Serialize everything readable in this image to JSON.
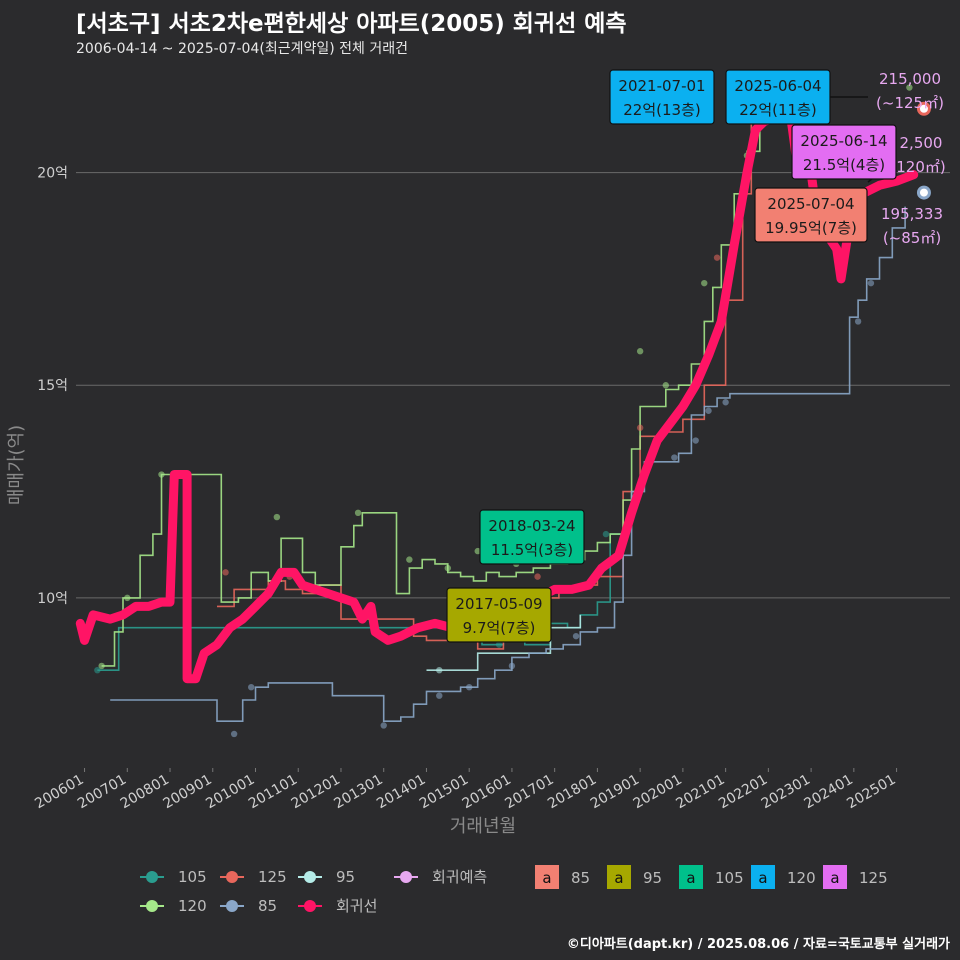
{
  "header": {
    "title": "[서초구] 서초2차e편한세상 아파트(2005) 회귀선 예측",
    "subtitle": "2006-04-14 ~ 2025-07-04(최근계약일) 전체 거래건"
  },
  "footer": {
    "credit": "©디아파트(dapt.kr) / 2025.08.06 / 자료=국토교통부 실거래가"
  },
  "colors": {
    "background": "#2b2b2d",
    "s105": "#2a9d8f",
    "s125": "#e8675c",
    "s95": "#b5ece8",
    "s120": "#a6e88a",
    "s85": "#8aa7c9",
    "regression": "#ff1465",
    "forecast": "#e7a8f0",
    "box85": "#f28072",
    "box95": "#a6a800",
    "box105": "#00c08b",
    "box120": "#0bb0f0",
    "box125": "#e36df2"
  },
  "chart_data": {
    "type": "line",
    "xlabel": "거래년월",
    "ylabel": "매매가(억)",
    "x_ticks": [
      "200601",
      "200701",
      "200801",
      "200901",
      "201001",
      "201101",
      "201201",
      "201301",
      "201401",
      "201501",
      "201601",
      "201701",
      "201801",
      "201901",
      "202001",
      "202101",
      "202201",
      "202301",
      "202401",
      "202501"
    ],
    "y_ticks": [
      {
        "value": 10,
        "label": "10억"
      },
      {
        "value": 15,
        "label": "15억"
      },
      {
        "value": 20,
        "label": "20억"
      }
    ],
    "ylim": [
      6.0,
      22.6
    ],
    "xlim": [
      2005.8,
      2026.25
    ],
    "series": [
      {
        "name": "105",
        "color_key": "s105",
        "points": [
          [
            2006.3,
            8.3
          ],
          [
            2006.8,
            9.3
          ],
          [
            2007.3,
            9.3
          ],
          [
            2015.3,
            8.9
          ],
          [
            2015.8,
            9.0
          ],
          [
            2016.3,
            8.9
          ],
          [
            2016.9,
            9.4
          ],
          [
            2017.3,
            9.3
          ],
          [
            2017.6,
            9.6
          ],
          [
            2018.0,
            9.9
          ],
          [
            2018.3,
            11.5
          ],
          [
            2018.6,
            11.5
          ]
        ]
      },
      {
        "name": "125",
        "color_key": "s125",
        "points": [
          [
            2009.1,
            9.8
          ],
          [
            2009.5,
            10.2
          ],
          [
            2009.9,
            10.2
          ],
          [
            2010.3,
            10.4
          ],
          [
            2010.7,
            10.2
          ],
          [
            2011.1,
            10.1
          ],
          [
            2011.5,
            10.3
          ],
          [
            2012.0,
            9.5
          ],
          [
            2012.4,
            9.5
          ],
          [
            2013.7,
            9.1
          ],
          [
            2014.0,
            9.0
          ],
          [
            2014.5,
            9.2
          ],
          [
            2015.2,
            8.8
          ],
          [
            2015.8,
            9.0
          ],
          [
            2016.4,
            9.6
          ],
          [
            2016.8,
            10.0
          ],
          [
            2017.1,
            10.2
          ],
          [
            2017.5,
            10.3
          ],
          [
            2018.0,
            10.5
          ],
          [
            2018.6,
            12.5
          ],
          [
            2019.0,
            13.8
          ],
          [
            2019.5,
            13.9
          ],
          [
            2020.0,
            14.2
          ],
          [
            2020.5,
            15.0
          ],
          [
            2021.0,
            17.0
          ],
          [
            2021.4,
            19.5
          ],
          [
            2021.6,
            21.5
          ],
          [
            2022.0,
            22.0
          ]
        ]
      },
      {
        "name": "95",
        "color_key": "s95",
        "points": [
          [
            2014.0,
            8.3
          ],
          [
            2014.4,
            8.3
          ],
          [
            2015.2,
            8.7
          ],
          [
            2015.7,
            8.7
          ],
          [
            2016.9,
            9.3
          ],
          [
            2017.6,
            9.6
          ]
        ]
      },
      {
        "name": "120",
        "color_key": "s120",
        "points": [
          [
            2006.4,
            8.4
          ],
          [
            2006.7,
            9.2
          ],
          [
            2006.9,
            10.0
          ],
          [
            2007.1,
            10.0
          ],
          [
            2007.3,
            11.0
          ],
          [
            2007.6,
            11.5
          ],
          [
            2007.8,
            12.9
          ],
          [
            2008.1,
            12.9
          ],
          [
            2009.2,
            9.9
          ],
          [
            2009.6,
            10.0
          ],
          [
            2009.9,
            10.6
          ],
          [
            2010.3,
            10.4
          ],
          [
            2010.6,
            11.4
          ],
          [
            2010.9,
            11.4
          ],
          [
            2011.1,
            10.6
          ],
          [
            2011.4,
            10.3
          ],
          [
            2011.7,
            10.3
          ],
          [
            2012.0,
            11.2
          ],
          [
            2012.3,
            11.7
          ],
          [
            2012.5,
            12.0
          ],
          [
            2012.8,
            12.0
          ],
          [
            2013.3,
            10.1
          ],
          [
            2013.6,
            10.7
          ],
          [
            2013.9,
            10.9
          ],
          [
            2014.2,
            10.8
          ],
          [
            2014.5,
            10.6
          ],
          [
            2014.8,
            10.5
          ],
          [
            2015.1,
            10.4
          ],
          [
            2015.4,
            10.6
          ],
          [
            2015.7,
            10.5
          ],
          [
            2016.1,
            10.6
          ],
          [
            2016.5,
            10.7
          ],
          [
            2016.9,
            10.8
          ],
          [
            2017.3,
            10.9
          ],
          [
            2017.7,
            11.1
          ],
          [
            2018.0,
            11.3
          ],
          [
            2018.3,
            11.5
          ],
          [
            2018.6,
            12.3
          ],
          [
            2018.8,
            13.5
          ],
          [
            2019.0,
            14.5
          ],
          [
            2019.3,
            14.5
          ],
          [
            2019.6,
            14.9
          ],
          [
            2019.9,
            15.0
          ],
          [
            2020.2,
            15.5
          ],
          [
            2020.5,
            16.5
          ],
          [
            2020.7,
            17.3
          ],
          [
            2020.9,
            18.3
          ],
          [
            2021.2,
            19.5
          ],
          [
            2021.5,
            20.5
          ],
          [
            2021.8,
            22.0
          ],
          [
            2022.1,
            22.0
          ]
        ]
      },
      {
        "name": "85",
        "color_key": "s85",
        "points": [
          [
            2006.6,
            7.6
          ],
          [
            2007.3,
            7.6
          ],
          [
            2009.1,
            7.1
          ],
          [
            2009.4,
            7.1
          ],
          [
            2009.7,
            7.6
          ],
          [
            2010.0,
            7.9
          ],
          [
            2010.3,
            8.0
          ],
          [
            2011.8,
            7.7
          ],
          [
            2012.3,
            7.7
          ],
          [
            2013.0,
            7.1
          ],
          [
            2013.4,
            7.2
          ],
          [
            2013.7,
            7.5
          ],
          [
            2014.0,
            7.8
          ],
          [
            2014.4,
            7.8
          ],
          [
            2014.8,
            7.9
          ],
          [
            2015.2,
            8.1
          ],
          [
            2015.6,
            8.3
          ],
          [
            2016.0,
            8.6
          ],
          [
            2016.4,
            8.7
          ],
          [
            2016.8,
            8.8
          ],
          [
            2017.2,
            8.9
          ],
          [
            2017.6,
            9.2
          ],
          [
            2018.0,
            9.3
          ],
          [
            2018.4,
            9.9
          ],
          [
            2018.6,
            11.0
          ],
          [
            2018.8,
            12.5
          ],
          [
            2019.1,
            13.2
          ],
          [
            2019.5,
            13.2
          ],
          [
            2019.9,
            13.4
          ],
          [
            2020.2,
            14.3
          ],
          [
            2020.5,
            14.5
          ],
          [
            2020.8,
            14.7
          ],
          [
            2021.1,
            14.8
          ],
          [
            2021.4,
            14.8
          ],
          [
            2023.9,
            16.6
          ],
          [
            2024.1,
            17.0
          ],
          [
            2024.3,
            17.5
          ],
          [
            2024.6,
            18.0
          ],
          [
            2024.9,
            18.7
          ],
          [
            2025.2,
            19.2
          ]
        ]
      },
      {
        "name": "회귀선",
        "color_key": "regression",
        "points": [
          [
            2005.9,
            9.4
          ],
          [
            2006.0,
            9.0
          ],
          [
            2006.2,
            9.6
          ],
          [
            2006.6,
            9.5
          ],
          [
            2006.9,
            9.6
          ],
          [
            2007.2,
            9.8
          ],
          [
            2007.5,
            9.8
          ],
          [
            2007.8,
            9.9
          ],
          [
            2008.0,
            9.9
          ],
          [
            2008.1,
            12.9
          ],
          [
            2008.4,
            12.9
          ],
          [
            2008.4,
            8.1
          ],
          [
            2008.6,
            8.1
          ],
          [
            2008.8,
            8.7
          ],
          [
            2009.1,
            8.9
          ],
          [
            2009.4,
            9.3
          ],
          [
            2009.7,
            9.5
          ],
          [
            2010.0,
            9.8
          ],
          [
            2010.3,
            10.1
          ],
          [
            2010.6,
            10.6
          ],
          [
            2010.9,
            10.6
          ],
          [
            2011.1,
            10.3
          ],
          [
            2011.4,
            10.2
          ],
          [
            2011.7,
            10.1
          ],
          [
            2012.0,
            10.0
          ],
          [
            2012.3,
            9.9
          ],
          [
            2012.5,
            9.5
          ],
          [
            2012.7,
            9.8
          ],
          [
            2012.8,
            9.2
          ],
          [
            2013.1,
            9.0
          ],
          [
            2013.4,
            9.1
          ],
          [
            2013.8,
            9.3
          ],
          [
            2014.2,
            9.4
          ],
          [
            2014.6,
            9.3
          ],
          [
            2015.0,
            9.5
          ],
          [
            2015.4,
            9.6
          ],
          [
            2015.8,
            9.8
          ],
          [
            2016.2,
            9.9
          ],
          [
            2016.6,
            10.0
          ],
          [
            2017.0,
            10.2
          ],
          [
            2017.4,
            10.2
          ],
          [
            2017.8,
            10.3
          ],
          [
            2018.1,
            10.7
          ],
          [
            2018.5,
            11.0
          ],
          [
            2018.8,
            12.0
          ],
          [
            2019.1,
            12.9
          ],
          [
            2019.4,
            13.7
          ],
          [
            2019.7,
            14.1
          ],
          [
            2020.0,
            14.5
          ],
          [
            2020.3,
            15.0
          ],
          [
            2020.6,
            15.7
          ],
          [
            2020.9,
            16.5
          ],
          [
            2021.2,
            18.3
          ],
          [
            2021.5,
            20.0
          ],
          [
            2021.7,
            21.0
          ],
          [
            2021.9,
            21.2
          ],
          [
            2022.2,
            21.3
          ],
          [
            2022.5,
            21.5
          ],
          [
            2022.7,
            20.0
          ],
          [
            2023.0,
            20.0
          ],
          [
            2023.2,
            18.5
          ],
          [
            2023.4,
            18.5
          ],
          [
            2023.6,
            18.2
          ],
          [
            2023.7,
            17.5
          ],
          [
            2023.9,
            18.8
          ],
          [
            2024.2,
            19.5
          ],
          [
            2024.6,
            19.7
          ],
          [
            2025.0,
            19.8
          ],
          [
            2025.4,
            19.95
          ]
        ]
      }
    ],
    "scatter": [
      {
        "series": "120",
        "points": [
          [
            2006.4,
            8.4
          ],
          [
            2007.0,
            10.0
          ],
          [
            2007.8,
            12.9
          ],
          [
            2010.5,
            11.9
          ],
          [
            2012.4,
            12.0
          ],
          [
            2013.6,
            10.9
          ],
          [
            2014.5,
            10.7
          ],
          [
            2015.2,
            11.1
          ],
          [
            2016.1,
            10.8
          ],
          [
            2019.0,
            15.8
          ],
          [
            2019.6,
            15.0
          ],
          [
            2020.5,
            17.4
          ],
          [
            2021.5,
            20.4
          ],
          [
            2021.8,
            22.0
          ],
          [
            2025.3,
            22.0
          ]
        ]
      },
      {
        "series": "125",
        "points": [
          [
            2009.3,
            10.6
          ],
          [
            2010.8,
            10.5
          ],
          [
            2016.6,
            10.5
          ],
          [
            2019.0,
            14.0
          ],
          [
            2020.8,
            18.0
          ]
        ]
      },
      {
        "series": "105",
        "points": [
          [
            2006.3,
            8.3
          ],
          [
            2015.7,
            8.9
          ],
          [
            2016.8,
            9.5
          ],
          [
            2018.2,
            11.5
          ]
        ]
      },
      {
        "series": "85",
        "points": [
          [
            2009.9,
            7.9
          ],
          [
            2009.5,
            6.8
          ],
          [
            2013.0,
            7.0
          ],
          [
            2014.3,
            7.7
          ],
          [
            2015.0,
            7.9
          ],
          [
            2016.0,
            8.4
          ],
          [
            2017.5,
            9.1
          ],
          [
            2019.8,
            13.3
          ],
          [
            2020.3,
            13.7
          ],
          [
            2020.6,
            14.4
          ],
          [
            2021.0,
            14.6
          ],
          [
            2024.1,
            16.5
          ],
          [
            2024.4,
            17.4
          ]
        ]
      },
      {
        "series": "95",
        "points": [
          [
            2014.3,
            8.3
          ]
        ]
      }
    ],
    "markers": [
      {
        "series": "125",
        "value": 21.5,
        "x": 2025.5,
        "color_key": "s125"
      },
      {
        "series": "85",
        "value": 19.53,
        "x": 2025.5,
        "color_key": "s85"
      }
    ],
    "annotations": [
      {
        "date": "2021-07-01",
        "price": "22억(13층)",
        "box_key": "box120",
        "x": 2021.5,
        "y": 22.0
      },
      {
        "date": "2025-06-04",
        "price": "22억(11층)",
        "box_key": "box120",
        "x": 2025.4,
        "y": 22.0
      },
      {
        "date": "2025-06-14",
        "price": "21.5억(4층)",
        "box_key": "box125",
        "x": 2025.45,
        "y": 21.5
      },
      {
        "date": "2025-07-04",
        "price": "19.95억(7층)",
        "box_key": "box85",
        "x": 2025.5,
        "y": 19.95
      },
      {
        "date": "2018-03-24",
        "price": "11.5억(3층)",
        "box_key": "box105",
        "x": 2018.2,
        "y": 11.5
      },
      {
        "date": "2017-05-09",
        "price": "9.7억(7층)",
        "box_key": "box95",
        "x": 2017.4,
        "y": 9.7
      }
    ],
    "forecasts": [
      {
        "value": "215,000",
        "area": "(~125㎡)"
      },
      {
        "value": "2,500",
        "area": "120㎡)"
      },
      {
        "value": "195,333",
        "area": "(~85㎡)"
      }
    ],
    "legend": {
      "lines": [
        {
          "label": "105",
          "color_key": "s105"
        },
        {
          "label": "125",
          "color_key": "s125"
        },
        {
          "label": "95",
          "color_key": "s95"
        },
        {
          "label": "회귀예측",
          "color_key": "forecast"
        },
        {
          "label": "120",
          "color_key": "s120"
        },
        {
          "label": "85",
          "color_key": "s85"
        },
        {
          "label": "회귀선",
          "color_key": "regression"
        }
      ],
      "boxes": [
        {
          "label": "85",
          "color_key": "box85"
        },
        {
          "label": "95",
          "color_key": "box95"
        },
        {
          "label": "105",
          "color_key": "box105"
        },
        {
          "label": "120",
          "color_key": "box120"
        },
        {
          "label": "125",
          "color_key": "box125"
        }
      ],
      "box_glyph": "a"
    }
  }
}
